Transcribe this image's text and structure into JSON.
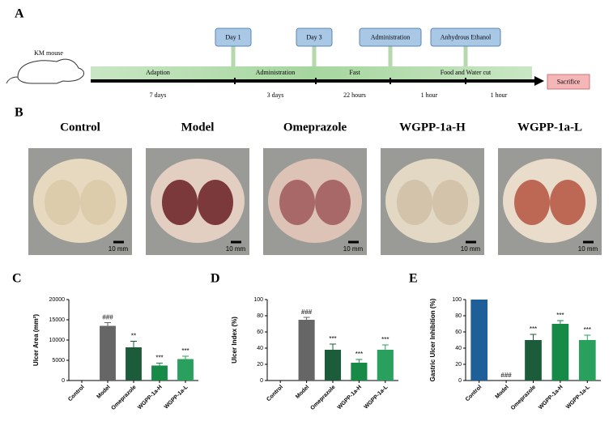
{
  "panel_a": {
    "label": "A",
    "animal": "KM mouse",
    "events": [
      "Day 1",
      "Day 3",
      "Administration",
      "Anhydrous Ethanol"
    ],
    "phases": [
      "Adaption",
      "Administration",
      "Fast",
      "Food and Water cut"
    ],
    "durations": [
      "7 days",
      "3 days",
      "22 hours",
      "1 hour",
      "1 hour"
    ],
    "end": "Sacrifice"
  },
  "panel_b": {
    "label": "B",
    "groups": [
      "Control",
      "Model",
      "Omeprazole",
      "WGPP-1a-H",
      "WGPP-1a-L"
    ],
    "scale_bars": [
      "10 mm",
      "10 mm",
      "10 mm",
      "10 mm",
      "10 mm"
    ]
  },
  "chart_data": [
    {
      "type": "bar",
      "label": "C",
      "y_label": "Ulcer Area (mm²)",
      "categories": [
        "Control",
        "Model",
        "Omeprazole",
        "WGPP-1a-H",
        "WGPP-1a-L"
      ],
      "values": [
        0,
        13500,
        8200,
        3700,
        5300
      ],
      "errors": [
        0,
        800,
        1500,
        600,
        700
      ],
      "annotations": [
        null,
        "###",
        "**",
        "***",
        "***"
      ],
      "colors": [
        "#1f5f99",
        "#666666",
        "#1d5c3a",
        "#178a48",
        "#2aa05e"
      ],
      "ylim": [
        0,
        20000
      ],
      "yticks": [
        0,
        5000,
        10000,
        15000,
        20000
      ]
    },
    {
      "type": "bar",
      "label": "D",
      "y_label": "Ulcer Index (%)",
      "categories": [
        "Control",
        "Model",
        "Omeprazole",
        "WGPP-1a-H",
        "WGPP-1a-L"
      ],
      "values": [
        0,
        75,
        38,
        22,
        38
      ],
      "errors": [
        0,
        3,
        7,
        4,
        6
      ],
      "annotations": [
        null,
        "###",
        "***",
        "***",
        "***"
      ],
      "colors": [
        "#1f5f99",
        "#666666",
        "#1d5c3a",
        "#178a48",
        "#2aa05e"
      ],
      "ylim": [
        0,
        100
      ],
      "yticks": [
        0,
        20,
        40,
        60,
        80,
        100
      ]
    },
    {
      "type": "bar",
      "label": "E",
      "y_label": "Gastric Ulcer Inhibition (%)",
      "categories": [
        "Control",
        "Model",
        "Omeprazole",
        "WGPP-1a-H",
        "WGPP-1a-L"
      ],
      "values": [
        100,
        0,
        50,
        70,
        50
      ],
      "errors": [
        0,
        0,
        7,
        4,
        6
      ],
      "annotations": [
        null,
        "###",
        "***",
        "***",
        "***"
      ],
      "colors": [
        "#1f5f99",
        "#666666",
        "#1d5c3a",
        "#178a48",
        "#2aa05e"
      ],
      "ylim": [
        0,
        100
      ],
      "yticks": [
        0,
        20,
        40,
        60,
        80,
        100
      ]
    }
  ]
}
